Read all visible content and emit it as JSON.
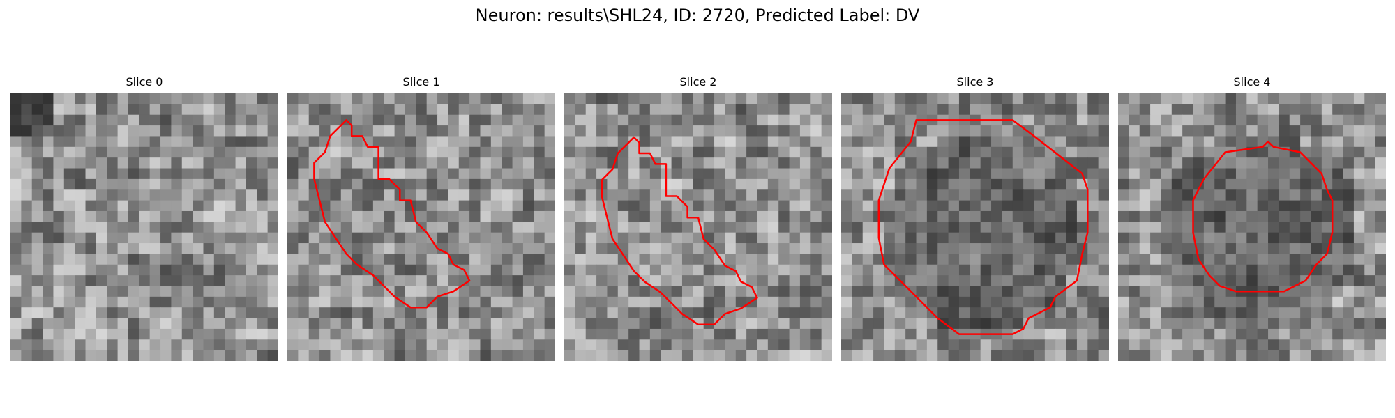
{
  "figure": {
    "title": "Neuron: results\\SHL24, ID: 2720, Predicted Label: DV"
  },
  "contour_color": "#ff0000",
  "slices": [
    {
      "title": "Slice 0",
      "seed": 11,
      "dark_center": false,
      "contour": "none"
    },
    {
      "title": "Slice 1",
      "seed": 23,
      "dark_center": false,
      "contour": "diagonal-blob"
    },
    {
      "title": "Slice 2",
      "seed": 37,
      "dark_center": false,
      "contour": "diagonal-blob"
    },
    {
      "title": "Slice 3",
      "seed": 53,
      "dark_center": true,
      "contour": "large-octagon"
    },
    {
      "title": "Slice 4",
      "seed": 71,
      "dark_center": true,
      "contour": "small-octagon"
    }
  ]
}
